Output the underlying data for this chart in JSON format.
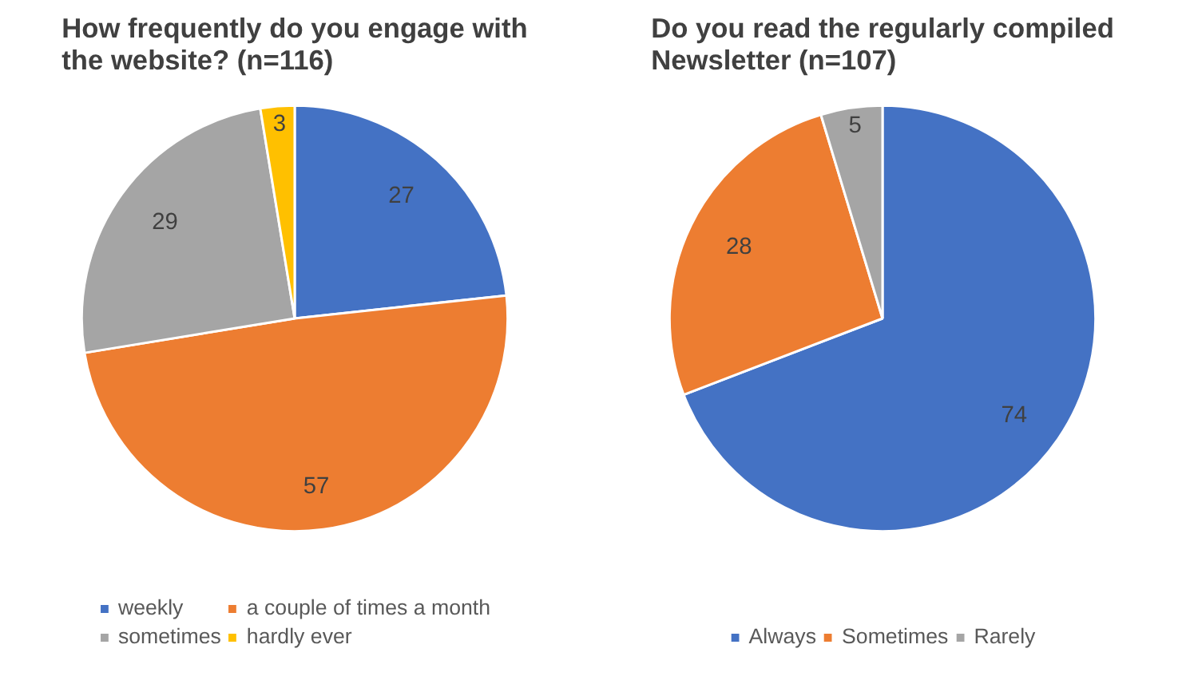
{
  "chart_data": [
    {
      "type": "pie",
      "title": "How frequently do you engage with the website? (n=116)",
      "categories": [
        "weekly",
        "a couple of times a month",
        "sometimes",
        "hardly ever"
      ],
      "values": [
        27,
        57,
        29,
        3
      ],
      "colors": [
        "#4472c4",
        "#ed7d31",
        "#a5a5a5",
        "#ffc000"
      ],
      "data_labels": true,
      "legend": "bottom"
    },
    {
      "type": "pie",
      "title": "Do you read the regularly compiled Newsletter (n=107)",
      "categories": [
        "Always",
        "Sometimes",
        "Rarely"
      ],
      "values": [
        74,
        28,
        5
      ],
      "colors": [
        "#4472c4",
        "#ed7d31",
        "#a5a5a5"
      ],
      "data_labels": true,
      "legend": "bottom"
    }
  ]
}
